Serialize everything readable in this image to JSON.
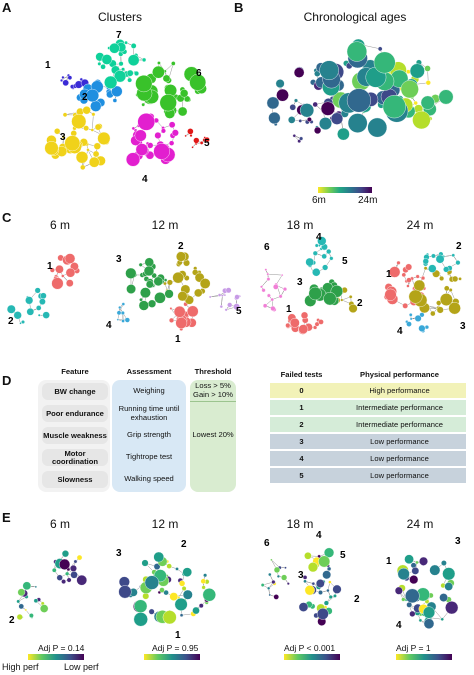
{
  "panels": {
    "a": {
      "letter": "A",
      "title": "Clusters"
    },
    "b": {
      "letter": "B",
      "title": "Chronological ages",
      "scale_min": "6m",
      "scale_max": "24m"
    },
    "c": {
      "letter": "C"
    },
    "d": {
      "letter": "D"
    },
    "e": {
      "letter": "E"
    }
  },
  "ages": [
    "6 m",
    "12 m",
    "18 m",
    "24 m"
  ],
  "cluster_numbers": {
    "a": [
      "1",
      "2",
      "3",
      "4",
      "5",
      "6",
      "7"
    ],
    "c6": [
      "1",
      "2"
    ],
    "c12": [
      "1",
      "2",
      "3",
      "4",
      "5"
    ],
    "c18": [
      "1",
      "2",
      "3",
      "4",
      "5",
      "6"
    ],
    "c24": [
      "1",
      "2",
      "3",
      "4"
    ]
  },
  "feature_table": {
    "headers": [
      "Feature",
      "Assessment",
      "Threshold"
    ],
    "rows": [
      {
        "feature": "BW change",
        "assessment": "Weighing"
      },
      {
        "feature": "Poor endurance",
        "assessment": "Running time until exhaustion"
      },
      {
        "feature": "Muscle weakness",
        "assessment": "Grip strength"
      },
      {
        "feature": "Motor coordination",
        "assessment": "Tightrope test"
      },
      {
        "feature": "Slowness",
        "assessment": "Walking speed"
      }
    ],
    "threshold_top": [
      "Loss > 5%",
      "Gain > 10%"
    ],
    "threshold_bottom": "Lowest 20%"
  },
  "performance_table": {
    "headers": [
      "Failed tests",
      "Physical performance"
    ],
    "rows": [
      {
        "failed": "0",
        "performance": "High performance",
        "color": "#f2f2b8"
      },
      {
        "failed": "1",
        "performance": "Intermediate performance",
        "color": "#d5ecd8"
      },
      {
        "failed": "2",
        "performance": "Intermediate performance",
        "color": "#d5ecd8"
      },
      {
        "failed": "3",
        "performance": "Low performance",
        "color": "#c7d2dc"
      },
      {
        "failed": "4",
        "performance": "Low performance",
        "color": "#c7d2dc"
      },
      {
        "failed": "5",
        "performance": "Low performance",
        "color": "#c7d2dc"
      }
    ]
  },
  "stats": {
    "p6": "Adj P = 0.14",
    "p12": "Adj P = 0.95",
    "p18": "Adj P < 0.001",
    "p24": "Adj P = 1"
  },
  "perf_legend": {
    "high": "High perf",
    "low": "Low perf"
  },
  "colors": {
    "cluster1": "#3a2bd6",
    "cluster2": "#1f8fe0",
    "cluster3": "#f0d21a",
    "cluster4": "#e21fcf",
    "cluster5": "#e01818",
    "cluster6": "#39c22a",
    "cluster7": "#0fd19a",
    "c_red": "#ee6b6b",
    "c_teal": "#26b8b4",
    "c_green": "#2ea04a",
    "c_olive": "#b4a418",
    "c_lilac": "#c79be6",
    "c_blue": "#3aa8d8",
    "c_pink": "#f07fd6"
  }
}
